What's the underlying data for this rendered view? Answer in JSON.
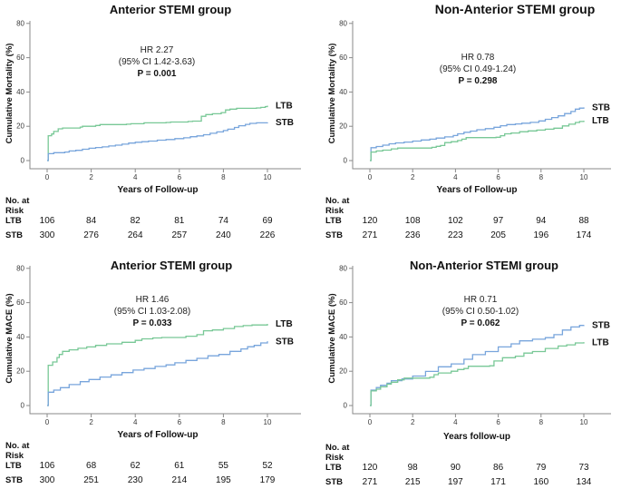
{
  "colors": {
    "ltb": "#78c896",
    "stb": "#78a5dc",
    "axis": "#8a8a8a"
  },
  "risk_header": [
    "No. at",
    "Risk"
  ],
  "chart_data": [
    {
      "type": "line",
      "title": "Anterior STEMI group",
      "ylabel": "Cumulative Mortality (%)",
      "xlabel": "Years of Follow-up",
      "ylim": [
        0,
        80
      ],
      "yticks": [
        0,
        20,
        40,
        60,
        80
      ],
      "xticks": [
        0,
        2,
        4,
        6,
        8,
        10
      ],
      "grid": false,
      "annotation": [
        "HR 2.27",
        "(95% CI 1.42-3.63)",
        "P = 0.001"
      ],
      "series": [
        {
          "name": "LTB",
          "color_key": "ltb",
          "points": [
            [
              0,
              0
            ],
            [
              0.05,
              14.5
            ],
            [
              0.2,
              15.5
            ],
            [
              0.3,
              17
            ],
            [
              0.5,
              18.5
            ],
            [
              0.7,
              19
            ],
            [
              1.5,
              19.5
            ],
            [
              1.6,
              20
            ],
            [
              2.2,
              20.5
            ],
            [
              2.4,
              21
            ],
            [
              3.6,
              21.2
            ],
            [
              3.8,
              21.5
            ],
            [
              4.4,
              22
            ],
            [
              5.4,
              22.2
            ],
            [
              5.6,
              22.5
            ],
            [
              6.4,
              22.8
            ],
            [
              6.6,
              23
            ],
            [
              6.95,
              23
            ],
            [
              7.0,
              25.8
            ],
            [
              7.2,
              26.8
            ],
            [
              7.5,
              27.3
            ],
            [
              7.9,
              28
            ],
            [
              8.1,
              29.5
            ],
            [
              8.3,
              30
            ],
            [
              8.6,
              30.5
            ],
            [
              9.5,
              30.7
            ],
            [
              9.7,
              31
            ],
            [
              9.9,
              31.5
            ],
            [
              10,
              32
            ]
          ]
        },
        {
          "name": "STB",
          "color_key": "stb",
          "points": [
            [
              0,
              0
            ],
            [
              0.05,
              4
            ],
            [
              0.3,
              4.6
            ],
            [
              0.8,
              5
            ],
            [
              1.0,
              5.6
            ],
            [
              1.3,
              6
            ],
            [
              1.6,
              6.6
            ],
            [
              1.9,
              7.2
            ],
            [
              2.2,
              7.6
            ],
            [
              2.5,
              8
            ],
            [
              2.8,
              8.5
            ],
            [
              3.1,
              9
            ],
            [
              3.4,
              9.6
            ],
            [
              3.7,
              10.2
            ],
            [
              4.0,
              10.7
            ],
            [
              4.3,
              11
            ],
            [
              4.6,
              11.4
            ],
            [
              5.0,
              11.9
            ],
            [
              5.4,
              12.3
            ],
            [
              5.8,
              12.8
            ],
            [
              6.2,
              13.3
            ],
            [
              6.5,
              13.9
            ],
            [
              6.8,
              14.4
            ],
            [
              7.1,
              15.1
            ],
            [
              7.4,
              15.9
            ],
            [
              7.7,
              16.7
            ],
            [
              8.0,
              17.5
            ],
            [
              8.2,
              18.3
            ],
            [
              8.5,
              19.3
            ],
            [
              8.7,
              20.3
            ],
            [
              9.0,
              21.1
            ],
            [
              9.2,
              21.7
            ],
            [
              9.5,
              22
            ],
            [
              10,
              22.3
            ]
          ]
        }
      ],
      "risk_rows": [
        {
          "name": "LTB",
          "values": [
            "106",
            "84",
            "82",
            "81",
            "74",
            "69"
          ]
        },
        {
          "name": "STB",
          "values": [
            "300",
            "276",
            "264",
            "257",
            "240",
            "226"
          ]
        }
      ]
    },
    {
      "type": "line",
      "title": "Non-Anterior STEMI group",
      "ylabel": "Cumulative Mortality (%)",
      "xlabel": "Years of Follow-up",
      "ylim": [
        0,
        80
      ],
      "yticks": [
        0,
        20,
        40,
        60,
        80
      ],
      "xticks": [
        0,
        2,
        4,
        6,
        8,
        10
      ],
      "grid": false,
      "annotation": [
        "HR 0.78",
        "(95% CI 0.49-1.24)",
        "P = 0.298"
      ],
      "series": [
        {
          "name": "STB",
          "color_key": "stb",
          "points": [
            [
              0,
              0
            ],
            [
              0.05,
              7.5
            ],
            [
              0.3,
              8.2
            ],
            [
              0.6,
              9
            ],
            [
              0.9,
              9.8
            ],
            [
              1.2,
              10.3
            ],
            [
              1.6,
              10.8
            ],
            [
              2.0,
              11.4
            ],
            [
              2.4,
              12
            ],
            [
              2.8,
              12.5
            ],
            [
              3.1,
              13.1
            ],
            [
              3.5,
              13.8
            ],
            [
              3.9,
              14.6
            ],
            [
              4.1,
              15.6
            ],
            [
              4.4,
              16.5
            ],
            [
              4.7,
              17.2
            ],
            [
              5.0,
              18
            ],
            [
              5.4,
              18.6
            ],
            [
              5.8,
              19.4
            ],
            [
              6.1,
              20.3
            ],
            [
              6.4,
              21
            ],
            [
              6.8,
              21.4
            ],
            [
              7.1,
              21.8
            ],
            [
              7.5,
              22.3
            ],
            [
              7.9,
              23.1
            ],
            [
              8.2,
              24.1
            ],
            [
              8.5,
              25.1
            ],
            [
              8.8,
              26.1
            ],
            [
              9.1,
              27.4
            ],
            [
              9.4,
              28.6
            ],
            [
              9.6,
              30
            ],
            [
              9.8,
              30.6
            ],
            [
              10,
              31
            ]
          ]
        },
        {
          "name": "LTB",
          "color_key": "ltb",
          "points": [
            [
              0,
              0
            ],
            [
              0.05,
              5
            ],
            [
              0.3,
              5.6
            ],
            [
              0.6,
              6.1
            ],
            [
              1.0,
              6.8
            ],
            [
              1.3,
              7.3
            ],
            [
              2.9,
              7.7
            ],
            [
              3.1,
              8.3
            ],
            [
              3.3,
              8.8
            ],
            [
              3.5,
              10.5
            ],
            [
              3.8,
              11
            ],
            [
              4.1,
              11.7
            ],
            [
              4.3,
              12.5
            ],
            [
              4.5,
              13.4
            ],
            [
              5.9,
              13.6
            ],
            [
              6.1,
              14.5
            ],
            [
              6.3,
              15.6
            ],
            [
              6.6,
              16.1
            ],
            [
              7.0,
              16.8
            ],
            [
              7.4,
              17.3
            ],
            [
              7.8,
              17.8
            ],
            [
              8.2,
              18.3
            ],
            [
              8.6,
              18.9
            ],
            [
              9.0,
              20.2
            ],
            [
              9.3,
              21.2
            ],
            [
              9.6,
              22.2
            ],
            [
              9.8,
              22.8
            ],
            [
              10,
              23.3
            ]
          ]
        }
      ],
      "risk_rows": [
        {
          "name": "LTB",
          "values": [
            "120",
            "108",
            "102",
            "97",
            "94",
            "88"
          ]
        },
        {
          "name": "STB",
          "values": [
            "271",
            "236",
            "223",
            "205",
            "196",
            "174"
          ]
        }
      ]
    },
    {
      "type": "line",
      "title": "Anterior STEMI group",
      "ylabel": "Cumulative MACE (%)",
      "xlabel": "Years of Follow-up",
      "ylim": [
        0,
        80
      ],
      "yticks": [
        0,
        20,
        40,
        60,
        80
      ],
      "xticks": [
        0,
        2,
        4,
        6,
        8,
        10
      ],
      "grid": false,
      "annotation": [
        "HR 1.46",
        "(95% CI 1.03-2.08)",
        "P = 0.033"
      ],
      "series": [
        {
          "name": "LTB",
          "color_key": "ltb",
          "points": [
            [
              0,
              0
            ],
            [
              0.05,
              23.5
            ],
            [
              0.25,
              25.4
            ],
            [
              0.45,
              28
            ],
            [
              0.55,
              29.8
            ],
            [
              0.7,
              31.6
            ],
            [
              1.0,
              32.5
            ],
            [
              1.4,
              33.4
            ],
            [
              1.8,
              34.2
            ],
            [
              2.2,
              35.1
            ],
            [
              2.7,
              36
            ],
            [
              3.4,
              36.9
            ],
            [
              4.0,
              38
            ],
            [
              4.3,
              38.9
            ],
            [
              4.8,
              39.4
            ],
            [
              5.2,
              39.7
            ],
            [
              6.3,
              40.4
            ],
            [
              6.8,
              41.3
            ],
            [
              7.1,
              43.6
            ],
            [
              7.5,
              44.1
            ],
            [
              8.0,
              44.9
            ],
            [
              8.5,
              46.1
            ],
            [
              8.9,
              46.6
            ],
            [
              9.3,
              47
            ],
            [
              10,
              47.6
            ]
          ]
        },
        {
          "name": "STB",
          "color_key": "stb",
          "points": [
            [
              0,
              0
            ],
            [
              0.05,
              7.8
            ],
            [
              0.3,
              9
            ],
            [
              0.6,
              10.4
            ],
            [
              1.0,
              12.2
            ],
            [
              1.5,
              13.9
            ],
            [
              1.9,
              15.2
            ],
            [
              2.4,
              16.6
            ],
            [
              2.9,
              17.9
            ],
            [
              3.4,
              19.2
            ],
            [
              3.9,
              20.7
            ],
            [
              4.4,
              21.6
            ],
            [
              4.9,
              22.8
            ],
            [
              5.4,
              23.7
            ],
            [
              5.8,
              24.9
            ],
            [
              6.3,
              26.3
            ],
            [
              6.8,
              27.5
            ],
            [
              7.3,
              29
            ],
            [
              7.8,
              29.8
            ],
            [
              8.3,
              31.6
            ],
            [
              8.8,
              33
            ],
            [
              9.1,
              34.3
            ],
            [
              9.4,
              35.1
            ],
            [
              9.7,
              36.5
            ],
            [
              10,
              37.5
            ]
          ]
        }
      ],
      "risk_rows": [
        {
          "name": "LTB",
          "values": [
            "106",
            "68",
            "62",
            "61",
            "55",
            "52"
          ]
        },
        {
          "name": "STB",
          "values": [
            "300",
            "251",
            "230",
            "214",
            "195",
            "179"
          ]
        }
      ]
    },
    {
      "type": "line",
      "title": "Non-Anterior STEMI group",
      "ylabel": "Cumulative MACE (%)",
      "xlabel": "Years follow-up",
      "ylim": [
        0,
        80
      ],
      "yticks": [
        0,
        20,
        40,
        60,
        80
      ],
      "xticks": [
        0,
        2,
        4,
        6,
        8,
        10
      ],
      "grid": false,
      "annotation": [
        "HR 0.71",
        "(95% CI 0.50-1.02)",
        "P = 0.062"
      ],
      "series": [
        {
          "name": "STB",
          "color_key": "stb",
          "points": [
            [
              0,
              0
            ],
            [
              0.05,
              9
            ],
            [
              0.3,
              10.5
            ],
            [
              0.5,
              11.8
            ],
            [
              0.8,
              13
            ],
            [
              1.0,
              14.5
            ],
            [
              1.5,
              15.5
            ],
            [
              2.0,
              17.2
            ],
            [
              2.6,
              19.9
            ],
            [
              3.2,
              22.6
            ],
            [
              3.8,
              24.3
            ],
            [
              4.4,
              27
            ],
            [
              4.8,
              29.7
            ],
            [
              5.4,
              31.5
            ],
            [
              6.0,
              34.2
            ],
            [
              6.6,
              36
            ],
            [
              7.0,
              37.7
            ],
            [
              7.6,
              38.7
            ],
            [
              8.2,
              39.6
            ],
            [
              8.6,
              41.3
            ],
            [
              9.0,
              44
            ],
            [
              9.4,
              45.8
            ],
            [
              9.8,
              46.7
            ],
            [
              10,
              47
            ]
          ]
        },
        {
          "name": "LTB",
          "color_key": "ltb",
          "points": [
            [
              0,
              0
            ],
            [
              0.05,
              8.5
            ],
            [
              0.3,
              9.5
            ],
            [
              0.5,
              10.9
            ],
            [
              0.8,
              12.5
            ],
            [
              1.0,
              13.6
            ],
            [
              1.3,
              15
            ],
            [
              1.6,
              16
            ],
            [
              2.8,
              16.5
            ],
            [
              3.0,
              18
            ],
            [
              3.2,
              19
            ],
            [
              3.8,
              20
            ],
            [
              4.1,
              21
            ],
            [
              4.4,
              21.6
            ],
            [
              4.6,
              22.9
            ],
            [
              5.6,
              23.2
            ],
            [
              5.8,
              26
            ],
            [
              6.2,
              27.9
            ],
            [
              6.8,
              28.8
            ],
            [
              7.2,
              30.6
            ],
            [
              7.6,
              31.5
            ],
            [
              8.2,
              33.3
            ],
            [
              8.8,
              34.7
            ],
            [
              9.2,
              35.4
            ],
            [
              9.6,
              36.5
            ],
            [
              10,
              37
            ]
          ]
        }
      ],
      "risk_rows": [
        {
          "name": "LTB",
          "values": [
            "120",
            "98",
            "90",
            "86",
            "79",
            "73"
          ]
        },
        {
          "name": "STB",
          "values": [
            "271",
            "215",
            "197",
            "171",
            "160",
            "134"
          ]
        }
      ]
    }
  ]
}
